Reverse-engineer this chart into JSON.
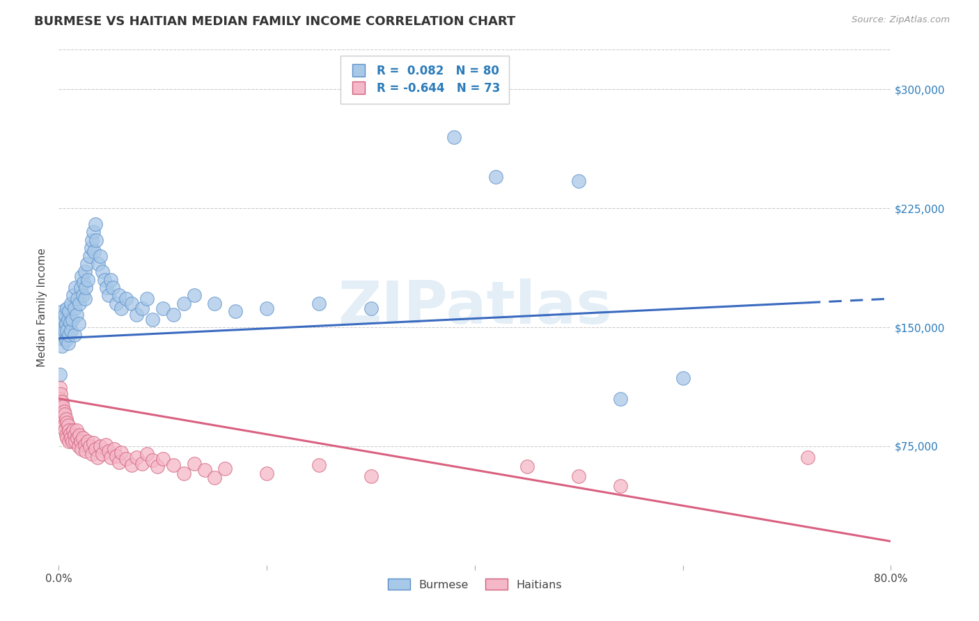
{
  "title": "BURMESE VS HAITIAN MEDIAN FAMILY INCOME CORRELATION CHART",
  "source": "Source: ZipAtlas.com",
  "ylabel": "Median Family Income",
  "xlim": [
    0.0,
    0.8
  ],
  "ylim": [
    0,
    325000
  ],
  "yticks": [
    75000,
    150000,
    225000,
    300000
  ],
  "ytick_labels": [
    "$75,000",
    "$150,000",
    "$225,000",
    "$300,000"
  ],
  "xticks": [
    0.0,
    0.2,
    0.4,
    0.6,
    0.8
  ],
  "burmese_color": "#a8c8e8",
  "burmese_edge": "#5b8fc9",
  "haitian_color": "#f5b8c8",
  "haitian_edge": "#d0607a",
  "burmese_R": 0.082,
  "burmese_N": 80,
  "haitian_R": -0.644,
  "haitian_N": 73,
  "trend_blue": "#3a6abf",
  "trend_pink": "#d96080",
  "background_color": "#ffffff",
  "burmese_points": [
    [
      0.001,
      148000
    ],
    [
      0.002,
      152000
    ],
    [
      0.002,
      143000
    ],
    [
      0.003,
      155000
    ],
    [
      0.003,
      147000
    ],
    [
      0.003,
      138000
    ],
    [
      0.004,
      150000
    ],
    [
      0.004,
      160000
    ],
    [
      0.005,
      145000
    ],
    [
      0.005,
      155000
    ],
    [
      0.006,
      148000
    ],
    [
      0.006,
      158000
    ],
    [
      0.007,
      152000
    ],
    [
      0.007,
      142000
    ],
    [
      0.008,
      148000
    ],
    [
      0.008,
      162000
    ],
    [
      0.009,
      155000
    ],
    [
      0.009,
      140000
    ],
    [
      0.01,
      160000
    ],
    [
      0.01,
      145000
    ],
    [
      0.011,
      153000
    ],
    [
      0.012,
      165000
    ],
    [
      0.012,
      148000
    ],
    [
      0.013,
      155000
    ],
    [
      0.014,
      170000
    ],
    [
      0.015,
      162000
    ],
    [
      0.015,
      145000
    ],
    [
      0.016,
      175000
    ],
    [
      0.017,
      158000
    ],
    [
      0.018,
      168000
    ],
    [
      0.019,
      152000
    ],
    [
      0.02,
      165000
    ],
    [
      0.021,
      175000
    ],
    [
      0.022,
      182000
    ],
    [
      0.023,
      170000
    ],
    [
      0.024,
      178000
    ],
    [
      0.025,
      185000
    ],
    [
      0.025,
      168000
    ],
    [
      0.026,
      175000
    ],
    [
      0.027,
      190000
    ],
    [
      0.028,
      180000
    ],
    [
      0.03,
      195000
    ],
    [
      0.031,
      200000
    ],
    [
      0.032,
      205000
    ],
    [
      0.033,
      210000
    ],
    [
      0.034,
      198000
    ],
    [
      0.035,
      215000
    ],
    [
      0.036,
      205000
    ],
    [
      0.038,
      190000
    ],
    [
      0.04,
      195000
    ],
    [
      0.042,
      185000
    ],
    [
      0.044,
      180000
    ],
    [
      0.046,
      175000
    ],
    [
      0.048,
      170000
    ],
    [
      0.05,
      180000
    ],
    [
      0.052,
      175000
    ],
    [
      0.055,
      165000
    ],
    [
      0.058,
      170000
    ],
    [
      0.06,
      162000
    ],
    [
      0.065,
      168000
    ],
    [
      0.07,
      165000
    ],
    [
      0.075,
      158000
    ],
    [
      0.08,
      162000
    ],
    [
      0.085,
      168000
    ],
    [
      0.09,
      155000
    ],
    [
      0.1,
      162000
    ],
    [
      0.11,
      158000
    ],
    [
      0.12,
      165000
    ],
    [
      0.13,
      170000
    ],
    [
      0.15,
      165000
    ],
    [
      0.17,
      160000
    ],
    [
      0.2,
      162000
    ],
    [
      0.25,
      165000
    ],
    [
      0.3,
      162000
    ],
    [
      0.38,
      270000
    ],
    [
      0.42,
      245000
    ],
    [
      0.5,
      242000
    ],
    [
      0.54,
      105000
    ],
    [
      0.6,
      118000
    ],
    [
      0.001,
      120000
    ]
  ],
  "haitian_points": [
    [
      0.001,
      112000
    ],
    [
      0.001,
      105000
    ],
    [
      0.001,
      98000
    ],
    [
      0.002,
      108000
    ],
    [
      0.002,
      100000
    ],
    [
      0.002,
      95000
    ],
    [
      0.003,
      103000
    ],
    [
      0.003,
      96000
    ],
    [
      0.003,
      90000
    ],
    [
      0.004,
      100000
    ],
    [
      0.004,
      93000
    ],
    [
      0.005,
      97000
    ],
    [
      0.005,
      88000
    ],
    [
      0.006,
      95000
    ],
    [
      0.006,
      85000
    ],
    [
      0.007,
      92000
    ],
    [
      0.007,
      82000
    ],
    [
      0.008,
      90000
    ],
    [
      0.008,
      80000
    ],
    [
      0.009,
      88000
    ],
    [
      0.01,
      85000
    ],
    [
      0.01,
      78000
    ],
    [
      0.011,
      83000
    ],
    [
      0.012,
      80000
    ],
    [
      0.013,
      78000
    ],
    [
      0.014,
      85000
    ],
    [
      0.015,
      82000
    ],
    [
      0.016,
      78000
    ],
    [
      0.017,
      85000
    ],
    [
      0.018,
      80000
    ],
    [
      0.019,
      75000
    ],
    [
      0.02,
      82000
    ],
    [
      0.021,
      78000
    ],
    [
      0.022,
      73000
    ],
    [
      0.023,
      80000
    ],
    [
      0.025,
      76000
    ],
    [
      0.026,
      72000
    ],
    [
      0.028,
      78000
    ],
    [
      0.03,
      75000
    ],
    [
      0.032,
      70000
    ],
    [
      0.033,
      77000
    ],
    [
      0.035,
      73000
    ],
    [
      0.037,
      68000
    ],
    [
      0.04,
      75000
    ],
    [
      0.042,
      70000
    ],
    [
      0.045,
      76000
    ],
    [
      0.048,
      72000
    ],
    [
      0.05,
      68000
    ],
    [
      0.053,
      73000
    ],
    [
      0.055,
      69000
    ],
    [
      0.058,
      65000
    ],
    [
      0.06,
      71000
    ],
    [
      0.065,
      67000
    ],
    [
      0.07,
      63000
    ],
    [
      0.075,
      68000
    ],
    [
      0.08,
      64000
    ],
    [
      0.085,
      70000
    ],
    [
      0.09,
      66000
    ],
    [
      0.095,
      62000
    ],
    [
      0.1,
      67000
    ],
    [
      0.11,
      63000
    ],
    [
      0.12,
      58000
    ],
    [
      0.13,
      64000
    ],
    [
      0.14,
      60000
    ],
    [
      0.15,
      55000
    ],
    [
      0.16,
      61000
    ],
    [
      0.2,
      58000
    ],
    [
      0.25,
      63000
    ],
    [
      0.3,
      56000
    ],
    [
      0.45,
      62000
    ],
    [
      0.5,
      56000
    ],
    [
      0.54,
      50000
    ],
    [
      0.72,
      68000
    ]
  ]
}
